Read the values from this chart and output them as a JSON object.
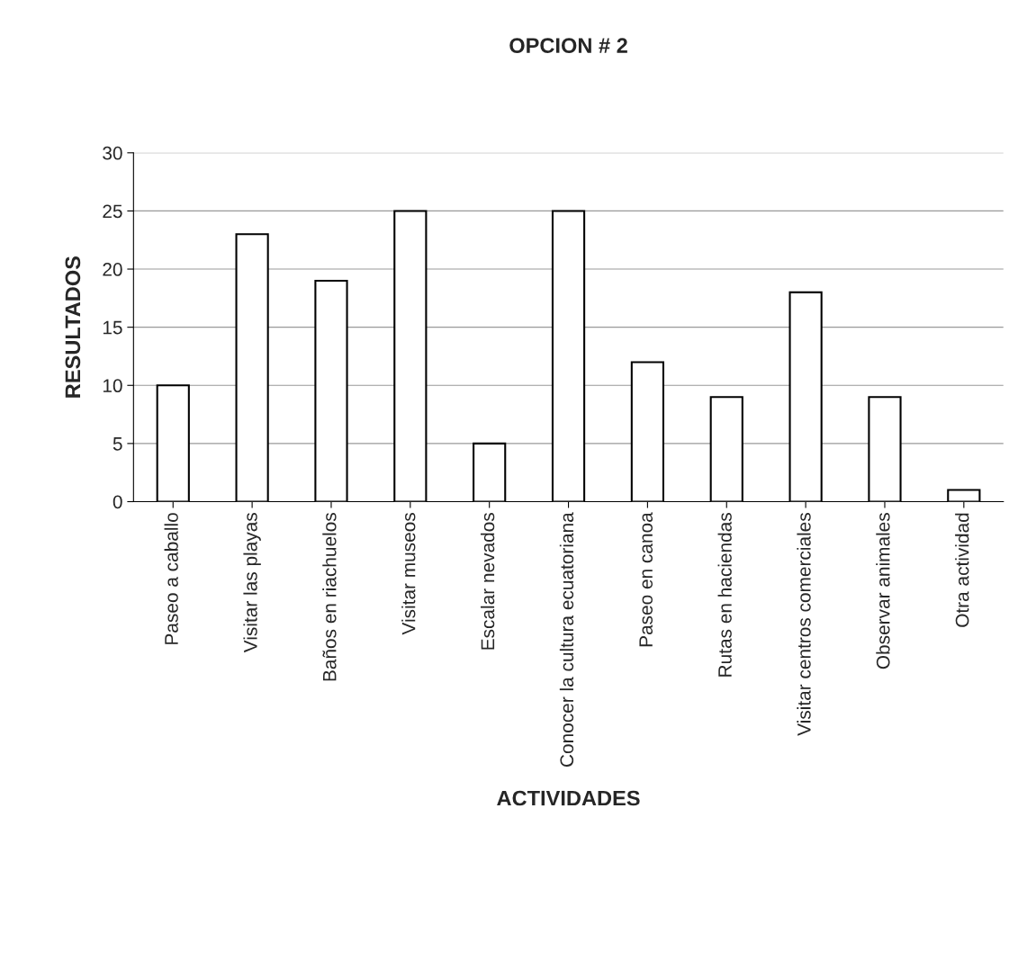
{
  "chart_data": {
    "type": "bar",
    "title": "OPCION # 2",
    "xlabel": "ACTIVIDADES",
    "ylabel": "RESULTADOS",
    "categories": [
      "Paseo a caballo",
      "Visitar las playas",
      "Baños en riachuelos",
      "Visitar museos",
      "Escalar nevados",
      "Conocer la cultura ecuatoriana",
      "Paseo en canoa",
      "Rutas en haciendas",
      "Visitar centros comerciales",
      "Observar animales",
      "Otra actividad"
    ],
    "values": [
      10,
      23,
      19,
      25,
      5,
      25,
      12,
      9,
      18,
      9,
      1
    ],
    "color": "#ffffff",
    "ylim": [
      0,
      30
    ],
    "yticks": [
      0,
      5,
      10,
      15,
      20,
      25,
      30
    ],
    "grid": "y",
    "legend": false
  }
}
